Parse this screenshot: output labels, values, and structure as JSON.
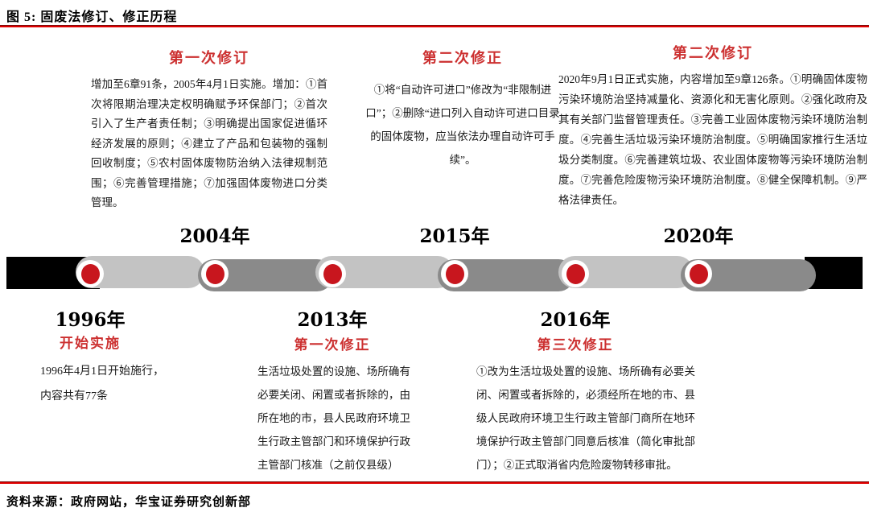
{
  "figure": {
    "title": "图 5:  固废法修订、修正历程",
    "source": "资料来源：政府网站，华宝证券研究创新部"
  },
  "colors": {
    "rule_red": "#e00000",
    "header_red": "#cc3030",
    "node_red": "#c8161e",
    "bar_light_gray": "#c3c3c3",
    "bar_dark_gray": "#8a8a8a",
    "bar_black": "#000000"
  },
  "timeline": {
    "top": [
      {
        "year": "2004年",
        "header": "第一次修订",
        "body": "增加至6章91条，2005年4月1日实施。增加：①首次将限期治理决定权明确赋予环保部门；②首次引入了生产者责任制；③明确提出国家促进循环经济发展的原则；④建立了产品和包装物的强制回收制度；⑤农村固体废物防治纳入法律规制范围；⑥完善管理措施；⑦加强固体废物进口分类管理。"
      },
      {
        "year": "2015年",
        "header": "第二次修正",
        "body": "①将“自动许可进口”修改为“非限制进口”；②删除“进口列入自动许可进口目录的固体废物，应当依法办理自动许可手续”。"
      },
      {
        "year": "2020年",
        "header": "第二次修订",
        "body": "2020年9月1日正式实施，内容增加至9章126条。①明确固体废物污染环境防治坚持减量化、资源化和无害化原则。②强化政府及其有关部门监督管理责任。③完善工业固体废物污染环境防治制度。④完善生活垃圾污染环境防治制度。⑤明确国家推行生活垃圾分类制度。⑥完善建筑垃圾、农业固体废物等污染环境防治制度。⑦完善危险废物污染环境防治制度。⑧健全保障机制。⑨严格法律责任。"
      }
    ],
    "bottom": [
      {
        "year": "1996年",
        "header": "开始实施",
        "body": "1996年4月1日开始施行，\n内容共有77条"
      },
      {
        "year": "2013年",
        "header": "第一次修正",
        "body": "生活垃圾处置的设施、场所确有必要关闭、闲置或者拆除的，由所在地的市，县人民政府环境卫生行政主管部门和环境保护行政主管部门核准（之前仅县级）"
      },
      {
        "year": "2016年",
        "header": "第三次修正",
        "body": "①改为生活垃圾处置的设施、场所确有必要关闭、闲置或者拆除的，必须经所在地的市、县级人民政府环境卫生行政主管部门商所在地环境保护行政主管部门同意后核准（简化审批部门）；②正式取消省内危险废物转移审批。"
      }
    ]
  }
}
